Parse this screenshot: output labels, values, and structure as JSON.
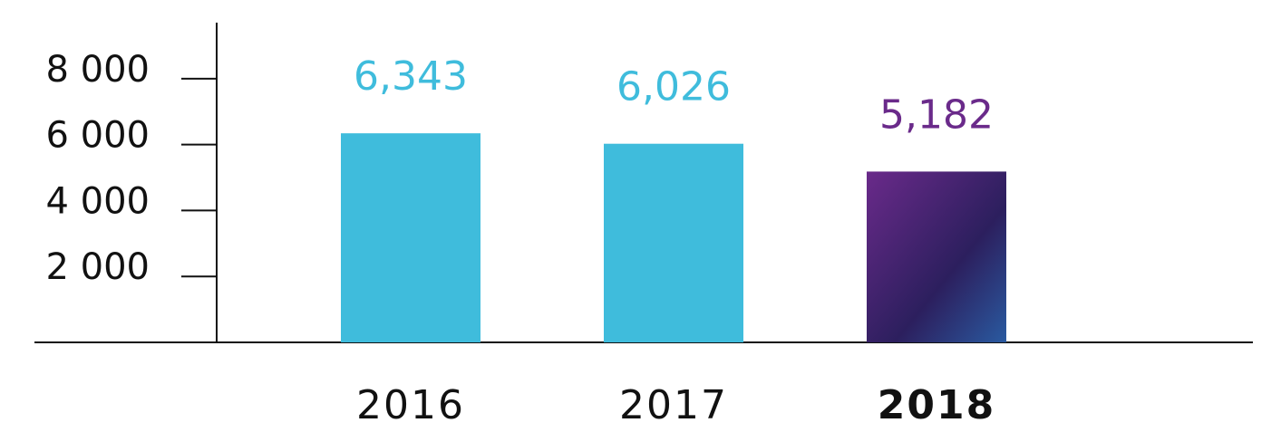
{
  "chart_data": {
    "type": "bar",
    "categories": [
      "2016",
      "2017",
      "2018"
    ],
    "values": [
      6343,
      6026,
      5182
    ],
    "value_labels": [
      "6,343",
      "6,026",
      "5,182"
    ],
    "colors": [
      "#3fbcdc",
      "#3fbcdc",
      "#6a2a8a"
    ],
    "highlight": 2,
    "ylim": [
      0,
      9700
    ],
    "yticks": [
      {
        "value": 2000,
        "label": "2 000"
      },
      {
        "value": 4000,
        "label": "4 000"
      },
      {
        "value": 6000,
        "label": "6 000"
      },
      {
        "value": 8000,
        "label": "8 000"
      }
    ]
  }
}
